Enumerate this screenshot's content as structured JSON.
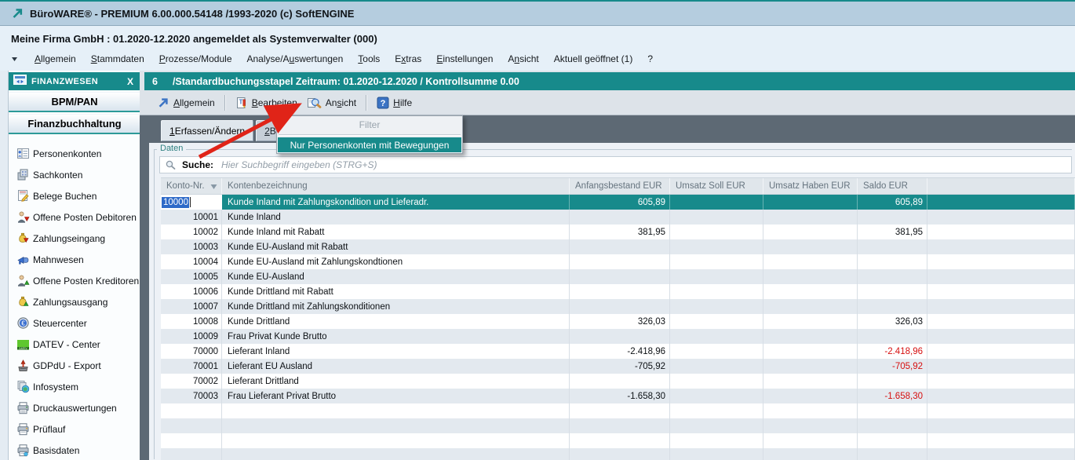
{
  "window": {
    "title": "BüroWARE® - PREMIUM  6.00.000.54148 /1993-2020 (c) SoftENGINE"
  },
  "session": {
    "text": "Meine Firma GmbH : 01.2020-12.2020 angemeldet als Systemverwalter (000)"
  },
  "menubar": {
    "items": [
      {
        "label": "Allgemein",
        "key_index": 0
      },
      {
        "label": "Stammdaten",
        "key_index": 0
      },
      {
        "label": "Prozesse/Module",
        "key_index": 0
      },
      {
        "label": "Analyse/Auswertungen",
        "key_index": 9
      },
      {
        "label": "Tools",
        "key_index": 0
      },
      {
        "label": "Extras",
        "key_index": 1
      },
      {
        "label": "Einstellungen",
        "key_index": 0
      },
      {
        "label": "Ansicht",
        "key_index": 1
      },
      {
        "label": "Aktuell geöffnet (1)",
        "key_index": 8
      },
      {
        "label": "?",
        "key_index": -1
      }
    ]
  },
  "sidebar": {
    "title": "FINANZWESEN",
    "title_icon": "finance-window-icon",
    "close_label": "X",
    "sections": [
      "BPM/PAN",
      "Finanzbuchhaltung"
    ],
    "items": [
      {
        "label": "Personenkonten",
        "icon": "person-account-icon"
      },
      {
        "label": "Sachkonten",
        "icon": "ledger-accounts-icon"
      },
      {
        "label": "Belege Buchen",
        "icon": "post-receipts-icon"
      },
      {
        "label": "Offene Posten Debitoren",
        "icon": "open-items-debtors-icon"
      },
      {
        "label": "Zahlungseingang",
        "icon": "incoming-payment-icon"
      },
      {
        "label": "Mahnwesen",
        "icon": "dunning-icon"
      },
      {
        "label": "Offene Posten Kreditoren",
        "icon": "open-items-creditors-icon"
      },
      {
        "label": "Zahlungsausgang",
        "icon": "outgoing-payment-icon"
      },
      {
        "label": "Steuercenter",
        "icon": "tax-center-icon"
      },
      {
        "label": "DATEV - Center",
        "icon": "datev-center-icon"
      },
      {
        "label": "GDPdU - Export",
        "icon": "gdpdu-export-icon"
      },
      {
        "label": "Infosystem",
        "icon": "info-system-icon"
      },
      {
        "label": "Druckauswertungen",
        "icon": "print-reports-icon"
      },
      {
        "label": "Prüflauf",
        "icon": "check-run-icon"
      },
      {
        "label": "Basisdaten",
        "icon": "base-data-icon"
      }
    ]
  },
  "command_bar": {
    "number": "6",
    "title": "/Standardbuchungsstapel Zeitraum: 01.2020-12.2020 / Kontrollsumme 0.00"
  },
  "toolbar": {
    "buttons": [
      {
        "label": "Allgemein",
        "key_index": 0,
        "icon": "arrow-northeast-icon"
      },
      {
        "label": "Bearbeiten",
        "key_index": 0,
        "icon": "edit-document-icon"
      },
      {
        "label": "Ansicht",
        "key_index": 2,
        "icon": "magnifier-document-icon"
      },
      {
        "label": "Hilfe",
        "key_index": 0,
        "icon": "help-icon"
      }
    ],
    "separators_after": [
      0,
      2
    ]
  },
  "tabs": [
    {
      "label": "1 Erfassen/Ändern",
      "key_index": 0,
      "active": true
    },
    {
      "label": "2 Buchun",
      "key_index": 0,
      "active": false
    }
  ],
  "view_menu": {
    "items": [
      {
        "label": "Filter",
        "disabled": true,
        "highlighted": false
      },
      {
        "label": "Nur Personenkonten mit Bewegungen",
        "disabled": false,
        "highlighted": true
      }
    ]
  },
  "panel": {
    "fieldset_label": "Daten",
    "search_label": "Suche:",
    "search_placeholder": "Hier Suchbegriff eingeben (STRG+S)",
    "search_icon": "search-icon"
  },
  "table": {
    "sort_icon": "sort-descending-icon",
    "columns": [
      {
        "id": "konto",
        "label": "Konto-Nr.",
        "sorted": true
      },
      {
        "id": "name",
        "label": "Kontenbezeichnung",
        "sorted": false
      },
      {
        "id": "anfang",
        "label": "Anfangsbestand EUR",
        "sorted": false
      },
      {
        "id": "soll",
        "label": "Umsatz Soll EUR",
        "sorted": false
      },
      {
        "id": "haben",
        "label": "Umsatz Haben EUR",
        "sorted": false
      },
      {
        "id": "saldo",
        "label": "Saldo EUR",
        "sorted": false
      },
      {
        "id": "filler",
        "label": "",
        "sorted": false
      }
    ],
    "rows": [
      {
        "konto": "10000",
        "name": "Kunde Inland mit Zahlungskondition und Lieferadr.",
        "anfang": "605,89",
        "soll": "",
        "haben": "",
        "saldo": "605,89",
        "selected": true,
        "negative": false
      },
      {
        "konto": "10001",
        "name": "Kunde Inland",
        "anfang": "",
        "soll": "",
        "haben": "",
        "saldo": "",
        "selected": false,
        "negative": false
      },
      {
        "konto": "10002",
        "name": "Kunde Inland mit Rabatt",
        "anfang": "381,95",
        "soll": "",
        "haben": "",
        "saldo": "381,95",
        "selected": false,
        "negative": false
      },
      {
        "konto": "10003",
        "name": "Kunde EU-Ausland mit Rabatt",
        "anfang": "",
        "soll": "",
        "haben": "",
        "saldo": "",
        "selected": false,
        "negative": false
      },
      {
        "konto": "10004",
        "name": "Kunde EU-Ausland mit Zahlungskondtionen",
        "anfang": "",
        "soll": "",
        "haben": "",
        "saldo": "",
        "selected": false,
        "negative": false
      },
      {
        "konto": "10005",
        "name": "Kunde EU-Ausland",
        "anfang": "",
        "soll": "",
        "haben": "",
        "saldo": "",
        "selected": false,
        "negative": false
      },
      {
        "konto": "10006",
        "name": "Kunde Drittland mit Rabatt",
        "anfang": "",
        "soll": "",
        "haben": "",
        "saldo": "",
        "selected": false,
        "negative": false
      },
      {
        "konto": "10007",
        "name": "Kunde Drittland mit Zahlungskonditionen",
        "anfang": "",
        "soll": "",
        "haben": "",
        "saldo": "",
        "selected": false,
        "negative": false
      },
      {
        "konto": "10008",
        "name": "Kunde Drittland",
        "anfang": "326,03",
        "soll": "",
        "haben": "",
        "saldo": "326,03",
        "selected": false,
        "negative": false
      },
      {
        "konto": "10009",
        "name": "Frau Privat Kunde Brutto",
        "anfang": "",
        "soll": "",
        "haben": "",
        "saldo": "",
        "selected": false,
        "negative": false
      },
      {
        "konto": "70000",
        "name": "Lieferant Inland",
        "anfang": "-2.418,96",
        "soll": "",
        "haben": "",
        "saldo": "-2.418,96",
        "selected": false,
        "negative": true
      },
      {
        "konto": "70001",
        "name": "Lieferant EU Ausland",
        "anfang": "-705,92",
        "soll": "",
        "haben": "",
        "saldo": "-705,92",
        "selected": false,
        "negative": true
      },
      {
        "konto": "70002",
        "name": "Lieferant Drittland",
        "anfang": "",
        "soll": "",
        "haben": "",
        "saldo": "",
        "selected": false,
        "negative": false
      },
      {
        "konto": "70003",
        "name": "Frau Lieferant Privat Brutto",
        "anfang": "-1.658,30",
        "soll": "",
        "haben": "",
        "saldo": "-1.658,30",
        "selected": false,
        "negative": true
      }
    ],
    "empty_row_count": 5
  },
  "annotation": {
    "type": "red-arrow",
    "color": "#e02418"
  },
  "colors": {
    "teal": "#178a8b",
    "selection_blue": "#2e6ac8",
    "negative_red": "#d60f0f",
    "arrow_red": "#e02418"
  }
}
